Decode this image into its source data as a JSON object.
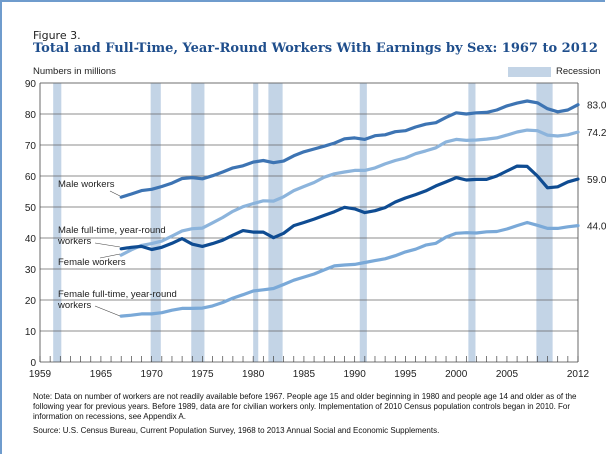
{
  "figure_label": "Figure 3.",
  "title": "Total and Full-Time, Year-Round Workers With Earnings by Sex: 1967 to 2012",
  "note": "Note: Data on number of workers are not readily available before 1967. People age 15 and older beginning in 1980 and people age 14 and older as of the following year for previous years. Before 1989, data are for civilian workers only. Implementation of 2010 Census population controls began in 2010. For information on recessions, see Appendix A.",
  "source": "Source: U.S. Census Bureau, Current Population Survey, 1968 to 2013 Annual Social and Economic Supplements.",
  "colors": {
    "male_workers": "#3d74b3",
    "female_workers": "#8cb4dc",
    "male_fulltime": "#0f4c92",
    "female_fulltime": "#7aa9d8",
    "recession": "#c3d4e6",
    "title": "#1f4e8c"
  },
  "chart_data": {
    "type": "line",
    "title": "Total and Full-Time, Year-Round Workers With Earnings by Sex: 1967 to 2012",
    "ylabel": "Numbers in millions",
    "xlabel": "",
    "xlim": [
      1959,
      2012
    ],
    "ylim": [
      0,
      90
    ],
    "yticks": [
      0,
      10,
      20,
      30,
      40,
      50,
      60,
      70,
      80,
      90
    ],
    "xtick_labels": [
      "1959",
      "1965",
      "1970",
      "1975",
      "1980",
      "1985",
      "1990",
      "1995",
      "2000",
      "2005",
      "2012"
    ],
    "xtick_values": [
      1959,
      1965,
      1970,
      1975,
      1980,
      1985,
      1990,
      1995,
      2000,
      2005,
      2012
    ],
    "grid": "horizontal",
    "legend": {
      "label": "Recession",
      "placement": "top-right"
    },
    "recessions": [
      [
        1960.3,
        1961.1
      ],
      [
        1969.9,
        1970.9
      ],
      [
        1973.9,
        1975.2
      ],
      [
        1980.0,
        1980.5
      ],
      [
        1981.5,
        1982.9
      ],
      [
        1990.5,
        1991.2
      ],
      [
        2001.2,
        2001.9
      ],
      [
        2007.9,
        2009.5
      ]
    ],
    "series": [
      {
        "name": "Male workers",
        "label": "Male workers",
        "end_label": "83.0",
        "x": [
          1967,
          1968,
          1969,
          1970,
          1971,
          1972,
          1973,
          1974,
          1975,
          1976,
          1977,
          1978,
          1979,
          1980,
          1981,
          1982,
          1983,
          1984,
          1985,
          1986,
          1987,
          1988,
          1989,
          1990,
          1991,
          1992,
          1993,
          1994,
          1995,
          1996,
          1997,
          1998,
          1999,
          2000,
          2001,
          2002,
          2003,
          2004,
          2005,
          2006,
          2007,
          2008,
          2009,
          2010,
          2011,
          2012
        ],
        "y": [
          53.2,
          54.2,
          55.3,
          55.7,
          56.6,
          57.7,
          59.2,
          59.5,
          59.1,
          60.1,
          61.3,
          62.6,
          63.3,
          64.5,
          65.0,
          64.3,
          64.8,
          66.5,
          67.8,
          68.7,
          69.6,
          70.6,
          72.0,
          72.3,
          71.8,
          73.0,
          73.3,
          74.3,
          74.6,
          75.8,
          76.7,
          77.2,
          78.9,
          80.4,
          80.0,
          80.4,
          80.5,
          81.3,
          82.6,
          83.5,
          84.2,
          83.6,
          81.7,
          80.7,
          81.3,
          83.0
        ]
      },
      {
        "name": "Female workers",
        "label": "Female workers",
        "end_label": "74.2",
        "x": [
          1967,
          1968,
          1969,
          1970,
          1971,
          1972,
          1973,
          1974,
          1975,
          1976,
          1977,
          1978,
          1979,
          1980,
          1981,
          1982,
          1983,
          1984,
          1985,
          1986,
          1987,
          1988,
          1989,
          1990,
          1991,
          1992,
          1993,
          1994,
          1995,
          1996,
          1997,
          1998,
          1999,
          2000,
          2001,
          2002,
          2003,
          2004,
          2005,
          2006,
          2007,
          2008,
          2009,
          2010,
          2011,
          2012
        ],
        "y": [
          34.5,
          36.2,
          37.6,
          38.2,
          39.0,
          40.6,
          42.3,
          43.0,
          43.2,
          44.9,
          46.6,
          48.6,
          50.1,
          51.1,
          52.0,
          51.9,
          53.3,
          55.3,
          56.6,
          57.9,
          59.6,
          60.7,
          61.3,
          61.8,
          61.8,
          62.6,
          63.9,
          65.0,
          65.8,
          67.2,
          68.1,
          69.1,
          71.0,
          71.8,
          71.5,
          71.6,
          71.9,
          72.3,
          73.2,
          74.2,
          74.8,
          74.6,
          73.2,
          72.9,
          73.3,
          74.2
        ]
      },
      {
        "name": "Male full-time, year-round workers",
        "label": "Male full-time, year-round workers",
        "end_label": "59.0",
        "x": [
          1967,
          1968,
          1969,
          1970,
          1971,
          1972,
          1973,
          1974,
          1975,
          1976,
          1977,
          1978,
          1979,
          1980,
          1981,
          1982,
          1983,
          1984,
          1985,
          1986,
          1987,
          1988,
          1989,
          1990,
          1991,
          1992,
          1993,
          1994,
          1995,
          1996,
          1997,
          1998,
          1999,
          2000,
          2001,
          2002,
          2003,
          2004,
          2005,
          2006,
          2007,
          2008,
          2009,
          2010,
          2011,
          2012
        ],
        "y": [
          36.5,
          37.0,
          37.3,
          36.3,
          37.0,
          38.3,
          39.8,
          38.0,
          37.3,
          38.2,
          39.3,
          40.9,
          42.4,
          41.9,
          41.9,
          40.1,
          41.5,
          44.0,
          45.0,
          46.1,
          47.3,
          48.5,
          49.9,
          49.4,
          48.2,
          48.8,
          49.8,
          51.6,
          52.9,
          54.0,
          55.2,
          56.8,
          58.1,
          59.5,
          58.7,
          58.9,
          58.9,
          60.0,
          61.6,
          63.2,
          63.1,
          60.0,
          56.2,
          56.5,
          58.1,
          59.0
        ]
      },
      {
        "name": "Female full-time, year-round workers",
        "label": "Female full-time, year-round workers",
        "end_label": "44.0",
        "x": [
          1967,
          1968,
          1969,
          1970,
          1971,
          1972,
          1973,
          1974,
          1975,
          1976,
          1977,
          1978,
          1979,
          1980,
          1981,
          1982,
          1983,
          1984,
          1985,
          1986,
          1987,
          1988,
          1989,
          1990,
          1991,
          1992,
          1993,
          1994,
          1995,
          1996,
          1997,
          1998,
          1999,
          2000,
          2001,
          2002,
          2003,
          2004,
          2005,
          2006,
          2007,
          2008,
          2009,
          2010,
          2011,
          2012
        ],
        "y": [
          14.8,
          15.1,
          15.5,
          15.5,
          15.9,
          16.7,
          17.3,
          17.3,
          17.4,
          18.1,
          19.2,
          20.6,
          21.7,
          22.9,
          23.3,
          23.7,
          25.0,
          26.4,
          27.4,
          28.4,
          29.7,
          31.0,
          31.3,
          31.5,
          32.1,
          32.7,
          33.3,
          34.3,
          35.5,
          36.4,
          37.7,
          38.3,
          40.3,
          41.5,
          41.7,
          41.6,
          42.0,
          42.1,
          42.9,
          44.0,
          45.0,
          44.1,
          43.1,
          43.1,
          43.6,
          44.0
        ]
      }
    ],
    "annotations": [
      {
        "text": "Male workers",
        "series": "Male workers"
      },
      {
        "text": "Male full-time, year-round workers",
        "series": "Male full-time, year-round workers"
      },
      {
        "text": "Female workers",
        "series": "Female workers"
      },
      {
        "text": "Female full-time, year-round workers",
        "series": "Female full-time, year-round workers"
      }
    ]
  }
}
